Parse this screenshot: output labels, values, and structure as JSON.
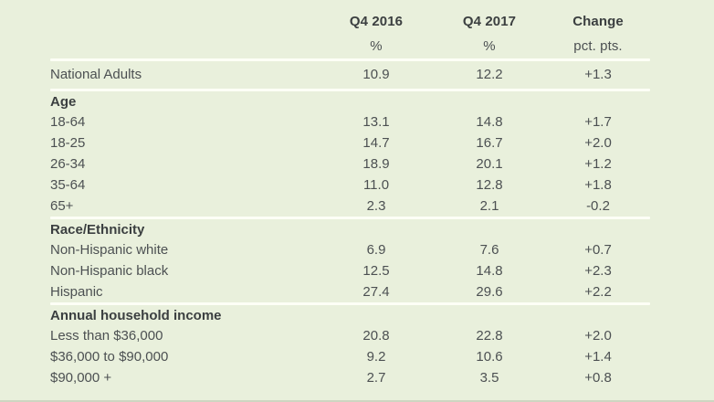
{
  "colors": {
    "background": "#e9f0dc",
    "rule": "#fdfff6",
    "text": "#4c5052",
    "bold_text": "#3b3f40"
  },
  "chart_data": {
    "type": "table",
    "columns": [
      {
        "label": "Q4 2016",
        "unit": "%"
      },
      {
        "label": "Q4 2017",
        "unit": "%"
      },
      {
        "label": "Change",
        "unit": "pct. pts."
      }
    ],
    "national": {
      "label": "National Adults",
      "q4_2016": "10.9",
      "q4_2017": "12.2",
      "change": "+1.3"
    },
    "sections": [
      {
        "heading": "Age",
        "rows": [
          {
            "label": "18-64",
            "q4_2016": "13.1",
            "q4_2017": "14.8",
            "change": "+1.7"
          },
          {
            "label": "18-25",
            "q4_2016": "14.7",
            "q4_2017": "16.7",
            "change": "+2.0"
          },
          {
            "label": "26-34",
            "q4_2016": "18.9",
            "q4_2017": "20.1",
            "change": "+1.2"
          },
          {
            "label": "35-64",
            "q4_2016": "11.0",
            "q4_2017": "12.8",
            "change": "+1.8"
          },
          {
            "label": "65+",
            "q4_2016": "2.3",
            "q4_2017": "2.1",
            "change": "-0.2"
          }
        ]
      },
      {
        "heading": "Race/Ethnicity",
        "rows": [
          {
            "label": "Non-Hispanic white",
            "q4_2016": "6.9",
            "q4_2017": "7.6",
            "change": "+0.7"
          },
          {
            "label": "Non-Hispanic black",
            "q4_2016": "12.5",
            "q4_2017": "14.8",
            "change": "+2.3"
          },
          {
            "label": "Hispanic",
            "q4_2016": "27.4",
            "q4_2017": "29.6",
            "change": "+2.2"
          }
        ]
      },
      {
        "heading": "Annual household income",
        "rows": [
          {
            "label": "Less than $36,000",
            "q4_2016": "20.8",
            "q4_2017": "22.8",
            "change": "+2.0"
          },
          {
            "label": "$36,000 to $90,000",
            "q4_2016": "9.2",
            "q4_2017": "10.6",
            "change": "+1.4"
          },
          {
            "label": "$90,000 +",
            "q4_2016": "2.7",
            "q4_2017": "3.5",
            "change": "+0.8"
          }
        ]
      }
    ]
  }
}
